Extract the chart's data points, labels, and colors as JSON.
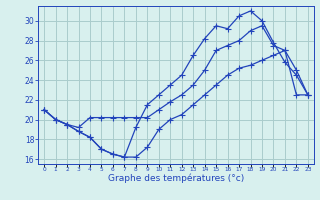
{
  "xlabel": "Graphe des températures (°c)",
  "background_color": "#d8f0ee",
  "line_color": "#2244bb",
  "grid_color": "#aacccc",
  "hours": [
    0,
    1,
    2,
    3,
    4,
    5,
    6,
    7,
    8,
    9,
    10,
    11,
    12,
    13,
    14,
    15,
    16,
    17,
    18,
    19,
    20,
    21,
    22,
    23
  ],
  "temp_line1": [
    21.0,
    20.0,
    19.5,
    19.2,
    20.2,
    20.2,
    20.2,
    20.2,
    20.2,
    20.2,
    21.0,
    21.8,
    22.5,
    23.5,
    25.0,
    27.0,
    27.5,
    28.0,
    29.0,
    29.5,
    27.5,
    27.0,
    25.0,
    22.5
  ],
  "temp_line2": [
    21.0,
    20.0,
    19.5,
    18.8,
    18.2,
    17.0,
    16.5,
    16.2,
    19.2,
    21.5,
    22.5,
    23.5,
    24.5,
    26.5,
    28.2,
    29.5,
    29.2,
    30.5,
    31.0,
    30.0,
    27.8,
    25.8,
    24.5,
    22.5
  ],
  "temp_line3": [
    21.0,
    20.0,
    19.5,
    18.8,
    18.2,
    17.0,
    16.5,
    16.2,
    16.2,
    17.2,
    19.0,
    20.0,
    20.5,
    21.5,
    22.5,
    23.5,
    24.5,
    25.2,
    25.5,
    26.0,
    26.5,
    27.0,
    22.5,
    22.5
  ],
  "ylim": [
    15.5,
    31.5
  ],
  "yticks": [
    16,
    18,
    20,
    22,
    24,
    26,
    28,
    30
  ],
  "xlim": [
    -0.5,
    23.5
  ]
}
